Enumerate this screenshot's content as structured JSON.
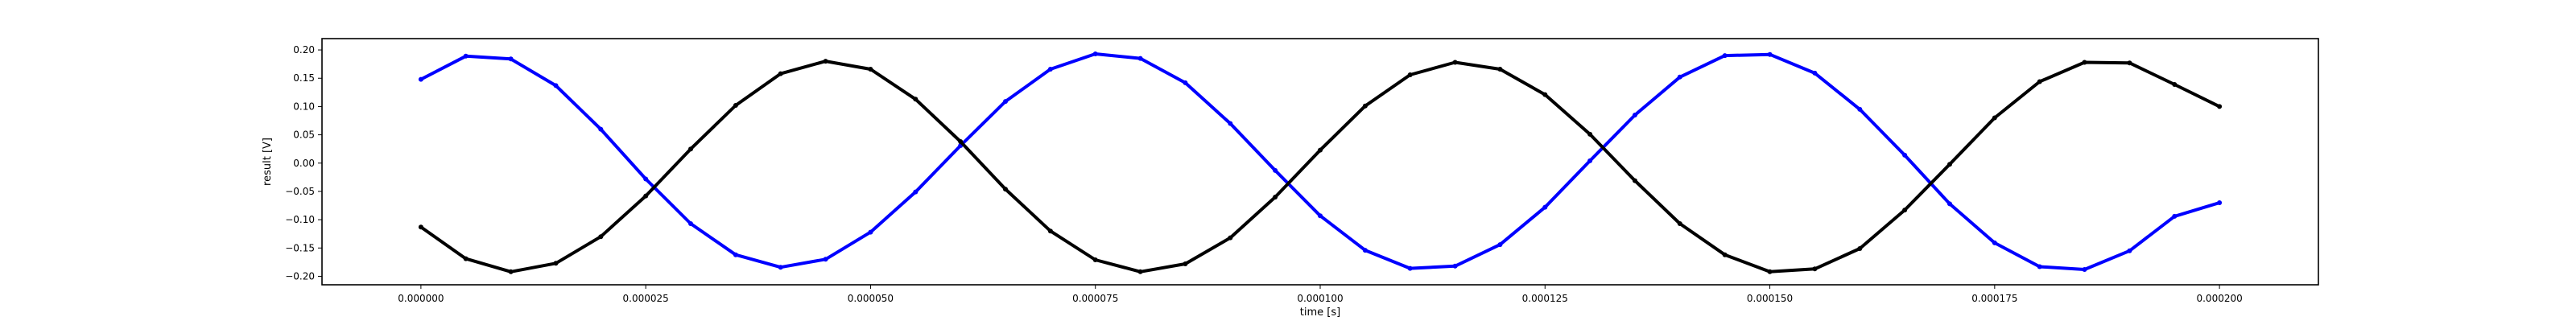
{
  "chart_data": {
    "type": "scatter",
    "title": "",
    "xlabel": "time [s]",
    "ylabel": "result [V]",
    "xlim": [
      -1.1e-05,
      0.000211
    ],
    "ylim": [
      -0.215,
      0.22
    ],
    "grid": false,
    "x_ticks": [
      {
        "value": 0,
        "label": "0.000000"
      },
      {
        "value": 2.5e-05,
        "label": "0.000025"
      },
      {
        "value": 5e-05,
        "label": "0.000050"
      },
      {
        "value": 7.5e-05,
        "label": "0.000075"
      },
      {
        "value": 0.0001,
        "label": "0.000100"
      },
      {
        "value": 0.000125,
        "label": "0.000125"
      },
      {
        "value": 0.00015,
        "label": "0.000150"
      },
      {
        "value": 0.000175,
        "label": "0.000175"
      },
      {
        "value": 0.0002,
        "label": "0.000200"
      }
    ],
    "y_ticks": [
      {
        "value": 0.2,
        "label": "0.20"
      },
      {
        "value": 0.15,
        "label": "0.15"
      },
      {
        "value": 0.1,
        "label": "0.10"
      },
      {
        "value": 0.05,
        "label": "0.05"
      },
      {
        "value": 0.0,
        "label": "0.00"
      },
      {
        "value": -0.05,
        "label": "−0.05"
      },
      {
        "value": -0.1,
        "label": "−0.10"
      },
      {
        "value": -0.15,
        "label": "−0.15"
      },
      {
        "value": -0.2,
        "label": "−0.20"
      }
    ],
    "series": [
      {
        "color": "#0000ff",
        "x": [
          0,
          5e-06,
          1e-05,
          1.5e-05,
          2e-05,
          2.5e-05,
          3e-05,
          3.5e-05,
          4e-05,
          4.5e-05,
          5e-05,
          5.5e-05,
          6e-05,
          6.5e-05,
          7e-05,
          7.5e-05,
          8e-05,
          8.5e-05,
          9e-05,
          9.5e-05,
          0.0001,
          0.000105,
          0.00011,
          0.000115,
          0.00012,
          0.000125,
          0.00013,
          0.000135,
          0.00014,
          0.000145,
          0.00015,
          0.000155,
          0.00016,
          0.000165,
          0.00017,
          0.000175,
          0.00018,
          0.000185,
          0.00019,
          0.000195,
          0.0002
        ],
        "y": [
          0.148,
          0.189,
          0.184,
          0.137,
          0.06,
          -0.028,
          -0.107,
          -0.162,
          -0.184,
          -0.17,
          -0.122,
          -0.051,
          0.031,
          0.109,
          0.166,
          0.193,
          0.185,
          0.142,
          0.07,
          -0.013,
          -0.093,
          -0.154,
          -0.186,
          -0.182,
          -0.144,
          -0.078,
          0.004,
          0.085,
          0.152,
          0.19,
          0.192,
          0.159,
          0.095,
          0.014,
          -0.072,
          -0.141,
          -0.183,
          -0.188,
          -0.155,
          -0.094,
          -0.07
        ]
      },
      {
        "color": "#000000",
        "x": [
          0,
          5e-06,
          1e-05,
          1.5e-05,
          2e-05,
          2.5e-05,
          3e-05,
          3.5e-05,
          4e-05,
          4.5e-05,
          5e-05,
          5.5e-05,
          6e-05,
          6.5e-05,
          7e-05,
          7.5e-05,
          8e-05,
          8.5e-05,
          9e-05,
          9.5e-05,
          0.0001,
          0.000105,
          0.00011,
          0.000115,
          0.00012,
          0.000125,
          0.00013,
          0.000135,
          0.00014,
          0.000145,
          0.00015,
          0.000155,
          0.00016,
          0.000165,
          0.00017,
          0.000175,
          0.00018,
          0.000185,
          0.00019,
          0.000195,
          0.0002
        ],
        "y": [
          -0.113,
          -0.169,
          -0.192,
          -0.177,
          -0.13,
          -0.058,
          0.025,
          0.102,
          0.158,
          0.18,
          0.166,
          0.113,
          0.038,
          -0.046,
          -0.12,
          -0.171,
          -0.192,
          -0.178,
          -0.132,
          -0.06,
          0.023,
          0.101,
          0.156,
          0.178,
          0.166,
          0.121,
          0.051,
          -0.031,
          -0.107,
          -0.162,
          -0.192,
          -0.187,
          -0.151,
          -0.083,
          -0.002,
          0.08,
          0.144,
          0.178,
          0.177,
          0.139,
          0.1
        ]
      }
    ]
  }
}
